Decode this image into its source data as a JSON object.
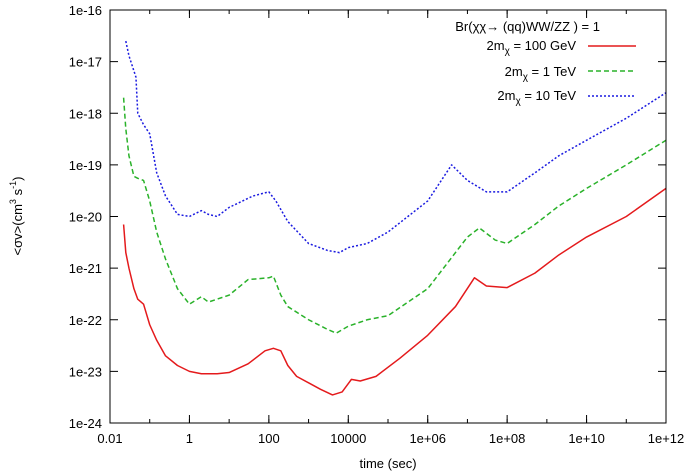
{
  "chart_data": {
    "type": "line",
    "xlabel": "time (sec)",
    "ylabel_parts": [
      "<σv>(cm",
      "3",
      " s",
      "-1",
      ")"
    ],
    "x_scale": "log",
    "y_scale": "log",
    "xlim": [
      0.01,
      1000000000000.0
    ],
    "ylim": [
      1e-24,
      1e-16
    ],
    "x_ticks": [
      {
        "value": 0.01,
        "label": "0.01"
      },
      {
        "value": 1,
        "label": "1"
      },
      {
        "value": 100,
        "label": "100"
      },
      {
        "value": 10000,
        "label": "10000"
      },
      {
        "value": 1000000.0,
        "label": "1e+06"
      },
      {
        "value": 100000000.0,
        "label": "1e+08"
      },
      {
        "value": 10000000000.0,
        "label": "1e+10"
      },
      {
        "value": 1000000000000.0,
        "label": "1e+12"
      }
    ],
    "y_ticks": [
      {
        "value": 1e-24,
        "label": "1e-24"
      },
      {
        "value": 1e-23,
        "label": "1e-23"
      },
      {
        "value": 1e-22,
        "label": "1e-22"
      },
      {
        "value": 1e-21,
        "label": "1e-21"
      },
      {
        "value": 1e-20,
        "label": "1e-20"
      },
      {
        "value": 1e-19,
        "label": "1e-19"
      },
      {
        "value": 1e-18,
        "label": "1e-18"
      },
      {
        "value": 1e-17,
        "label": "1e-17"
      },
      {
        "value": 1e-16,
        "label": "1e-16"
      }
    ],
    "legend": {
      "title": "Br(χχ→  (qq)WW/ZZ ) = 1",
      "placement": "top-right"
    },
    "series": [
      {
        "name": "2m_χ = 100 GeV",
        "label_main": "2m",
        "label_sub": "χ",
        "label_rest": " = 100 GeV",
        "color": "#e41a1c",
        "dash": "",
        "points": [
          [
            0.022,
            7e-21
          ],
          [
            0.025,
            2e-21
          ],
          [
            0.03,
            1e-21
          ],
          [
            0.04,
            4e-22
          ],
          [
            0.05,
            2.5e-22
          ],
          [
            0.07,
            2e-22
          ],
          [
            0.1,
            8e-23
          ],
          [
            0.15,
            4e-23
          ],
          [
            0.25,
            2e-23
          ],
          [
            0.5,
            1.3e-23
          ],
          [
            1,
            1e-23
          ],
          [
            2,
            9e-24
          ],
          [
            5,
            9e-24
          ],
          [
            10,
            9.5e-24
          ],
          [
            30,
            1.4e-23
          ],
          [
            80,
            2.5e-23
          ],
          [
            130,
            2.8e-23
          ],
          [
            200,
            2.5e-23
          ],
          [
            300,
            1.3e-23
          ],
          [
            500,
            8e-24
          ],
          [
            1000,
            6e-24
          ],
          [
            2000,
            4.5e-24
          ],
          [
            4000,
            3.5e-24
          ],
          [
            7000,
            4e-24
          ],
          [
            12000,
            7e-24
          ],
          [
            20000,
            6.5e-24
          ],
          [
            50000,
            8e-24
          ],
          [
            200000,
            1.8e-23
          ],
          [
            1000000.0,
            5e-23
          ],
          [
            5000000.0,
            1.8e-22
          ],
          [
            15000000.0,
            6.5e-22
          ],
          [
            30000000.0,
            4.5e-22
          ],
          [
            100000000.0,
            4.2e-22
          ],
          [
            500000000.0,
            8e-22
          ],
          [
            2000000000.0,
            1.8e-21
          ],
          [
            10000000000.0,
            4e-21
          ],
          [
            100000000000.0,
            1e-20
          ],
          [
            1000000000000.0,
            3.5e-20
          ]
        ]
      },
      {
        "name": "2m_χ = 1 TeV",
        "label_main": "2m",
        "label_sub": "χ",
        "label_rest": " = 1 TeV",
        "color": "#2ab22a",
        "dash": "5,3",
        "points": [
          [
            0.022,
            2e-18
          ],
          [
            0.025,
            5e-19
          ],
          [
            0.03,
            1.5e-19
          ],
          [
            0.04,
            6e-20
          ],
          [
            0.05,
            5.5e-20
          ],
          [
            0.07,
            5e-20
          ],
          [
            0.1,
            2e-20
          ],
          [
            0.15,
            5e-21
          ],
          [
            0.25,
            1.5e-21
          ],
          [
            0.5,
            4e-22
          ],
          [
            1,
            2e-22
          ],
          [
            2,
            2.8e-22
          ],
          [
            3,
            2.2e-22
          ],
          [
            10,
            3e-22
          ],
          [
            30,
            6e-22
          ],
          [
            100,
            6.5e-22
          ],
          [
            130,
            7e-22
          ],
          [
            200,
            3e-22
          ],
          [
            300,
            1.8e-22
          ],
          [
            1000,
            1e-22
          ],
          [
            3000,
            6.5e-23
          ],
          [
            5000,
            5.5e-23
          ],
          [
            10000,
            7.5e-23
          ],
          [
            30000,
            1e-22
          ],
          [
            100000,
            1.2e-22
          ],
          [
            1000000.0,
            4e-22
          ],
          [
            10000000.0,
            4e-21
          ],
          [
            20000000.0,
            6e-21
          ],
          [
            50000000.0,
            3.5e-21
          ],
          [
            100000000.0,
            3e-21
          ],
          [
            500000000.0,
            7e-21
          ],
          [
            2000000000.0,
            1.6e-20
          ],
          [
            10000000000.0,
            3.5e-20
          ],
          [
            100000000000.0,
            1e-19
          ],
          [
            1000000000000.0,
            3e-19
          ]
        ]
      },
      {
        "name": "2m_χ = 10 TeV",
        "label_main": "2m",
        "label_sub": "χ",
        "label_rest": " = 10 TeV",
        "color": "#1a1ae0",
        "dash": "2,2",
        "points": [
          [
            0.025,
            2.5e-17
          ],
          [
            0.03,
            1.3e-17
          ],
          [
            0.045,
            5e-18
          ],
          [
            0.05,
            1e-18
          ],
          [
            0.07,
            6e-19
          ],
          [
            0.1,
            4e-19
          ],
          [
            0.15,
            7e-20
          ],
          [
            0.25,
            2.5e-20
          ],
          [
            0.5,
            1.1e-20
          ],
          [
            1,
            1e-20
          ],
          [
            2,
            1.3e-20
          ],
          [
            3,
            1.1e-20
          ],
          [
            5,
            1e-20
          ],
          [
            10,
            1.5e-20
          ],
          [
            40,
            2.5e-20
          ],
          [
            100,
            3e-20
          ],
          [
            150,
            2e-20
          ],
          [
            300,
            8e-21
          ],
          [
            1000,
            3e-21
          ],
          [
            3000,
            2.2e-21
          ],
          [
            6000,
            2e-21
          ],
          [
            10000,
            2.5e-21
          ],
          [
            30000,
            3e-21
          ],
          [
            100000,
            5e-21
          ],
          [
            1000000.0,
            2e-20
          ],
          [
            4000000.0,
            1e-19
          ],
          [
            10000000.0,
            5e-20
          ],
          [
            30000000.0,
            3e-20
          ],
          [
            100000000.0,
            3e-20
          ],
          [
            500000000.0,
            7e-20
          ],
          [
            2000000000.0,
            1.5e-19
          ],
          [
            10000000000.0,
            3e-19
          ],
          [
            100000000000.0,
            8e-19
          ],
          [
            1000000000000.0,
            2.5e-18
          ]
        ]
      }
    ]
  }
}
